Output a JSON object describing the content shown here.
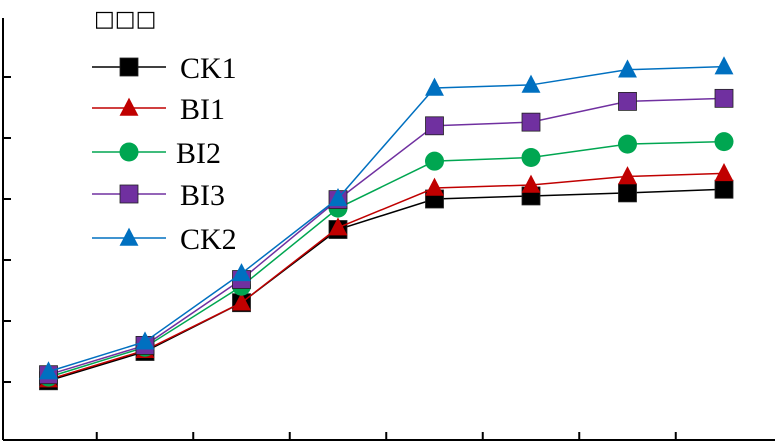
{
  "chart_data": {
    "type": "line",
    "title": "□□□",
    "xlabel": "",
    "ylabel": "",
    "x": [
      1,
      2,
      3,
      4,
      5,
      6,
      7,
      8
    ],
    "xlim": [
      0.5,
      8.5
    ],
    "ylim": [
      0,
      6
    ],
    "legend_position": "top-left",
    "grid": false,
    "series": [
      {
        "name": "CK1",
        "color": "#000000",
        "marker": "square",
        "values": [
          1.02,
          1.5,
          2.3,
          3.5,
          4.0,
          4.05,
          4.1,
          4.16
        ]
      },
      {
        "name": "BI1",
        "color": "#c00000",
        "marker": "triangle",
        "values": [
          1.04,
          1.52,
          2.3,
          3.53,
          4.18,
          4.23,
          4.37,
          4.42
        ]
      },
      {
        "name": "BI2",
        "color": "#00a651",
        "marker": "circle",
        "values": [
          1.08,
          1.57,
          2.57,
          3.85,
          4.62,
          4.68,
          4.9,
          4.94
        ]
      },
      {
        "name": "BI3",
        "color": "#7030a0",
        "marker": "square",
        "values": [
          1.12,
          1.6,
          2.68,
          3.99,
          5.2,
          5.26,
          5.6,
          5.65
        ]
      },
      {
        "name": "CK2",
        "color": "#0070c0",
        "marker": "triangle",
        "values": [
          1.17,
          1.66,
          2.78,
          4.01,
          5.82,
          5.87,
          6.12,
          6.17
        ]
      }
    ]
  }
}
